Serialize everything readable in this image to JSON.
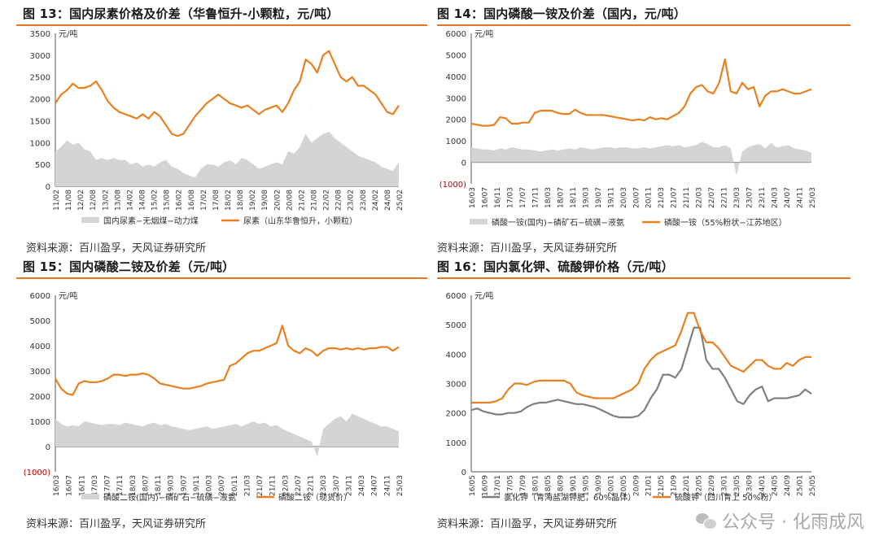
{
  "panels": [
    {
      "title": "图 13：国内尿素价格及价差（华鲁恒升-小颗粒，元/吨）",
      "source": "资料来源：百川盈孚，天风证券研究所"
    },
    {
      "title": "图 14：国内磷酸一铵及价差（国内，元/吨）",
      "source": "资料来源：百川盈孚，天风证券研究所"
    },
    {
      "title": "图 15：国内磷酸二铵及价差（元/吨）",
      "source": "资料来源：百川盈孚，天风证券研究所"
    },
    {
      "title": "图 16：国内氯化钾、硫酸钾价格（元/吨）",
      "source": "资料来源：百川盈孚，天风证券研究所"
    }
  ],
  "watermark": {
    "text": "公众号 · 化雨成风"
  },
  "colors": {
    "orange": "#e8801f",
    "gray_area": "#d4d4d4",
    "gray_line": "#7f7f7f",
    "accent_rule": "#e87722",
    "neg_label": "#c00000"
  },
  "chart_data": [
    {
      "type": "area",
      "unit": "元/吨",
      "ylim": [
        0,
        3500
      ],
      "yticks": [
        "0",
        "500",
        "1000",
        "1500",
        "2000",
        "2500",
        "3000",
        "3500"
      ],
      "x_labels": [
        "11/02",
        "11/08",
        "12/02",
        "12/08",
        "13/02",
        "13/08",
        "14/02",
        "14/08",
        "15/02",
        "15/08",
        "16/02",
        "16/08",
        "17/02",
        "17/08",
        "18/02",
        "18/08",
        "19/02",
        "19/08",
        "20/02",
        "20/08",
        "21/02",
        "21/08",
        "22/02",
        "22/08",
        "23/02",
        "23/08",
        "24/02",
        "24/08",
        "25/02"
      ],
      "series": [
        {
          "name": "国内尿素−无烟煤−动力煤",
          "kind": "area",
          "color": "#d4d4d4",
          "values": [
            800,
            900,
            1050,
            950,
            1000,
            850,
            800,
            600,
            650,
            600,
            650,
            600,
            600,
            500,
            550,
            450,
            500,
            450,
            550,
            600,
            450,
            400,
            300,
            250,
            200,
            400,
            500,
            500,
            450,
            550,
            600,
            500,
            650,
            600,
            500,
            400,
            450,
            500,
            550,
            500,
            800,
            750,
            900,
            1200,
            1000,
            1100,
            1200,
            1250,
            1100,
            1000,
            900,
            800,
            700,
            650,
            600,
            550,
            450,
            400,
            350,
            550
          ]
        },
        {
          "name": "尿素（山东华鲁恒升，小颗粒）",
          "kind": "line",
          "color": "#e8801f",
          "values": [
            1900,
            2100,
            2200,
            2350,
            2250,
            2250,
            2300,
            2400,
            2200,
            1950,
            1800,
            1700,
            1650,
            1600,
            1550,
            1650,
            1550,
            1700,
            1600,
            1400,
            1200,
            1150,
            1200,
            1400,
            1600,
            1750,
            1900,
            2000,
            2100,
            2000,
            1900,
            1850,
            1800,
            1850,
            1750,
            1650,
            1750,
            1800,
            1850,
            1700,
            1900,
            2200,
            2400,
            2900,
            2800,
            2600,
            3000,
            3100,
            2800,
            2500,
            2400,
            2500,
            2300,
            2300,
            2200,
            2100,
            1900,
            1700,
            1650,
            1850
          ]
        }
      ]
    },
    {
      "type": "area",
      "unit": "元/吨",
      "ylim": [
        -1000,
        6000
      ],
      "yticks": [
        "(1000)",
        "0",
        "1000",
        "2000",
        "3000",
        "4000",
        "5000",
        "6000"
      ],
      "x_labels": [
        "16/03",
        "16/07",
        "16/11",
        "17/03",
        "17/07",
        "17/11",
        "18/03",
        "18/07",
        "18/11",
        "19/03",
        "19/07",
        "19/11",
        "20/03",
        "20/07",
        "20/11",
        "21/03",
        "21/07",
        "21/11",
        "22/03",
        "22/07",
        "22/11",
        "23/03",
        "23/07",
        "23/11",
        "24/03",
        "24/07",
        "24/11",
        "25/03"
      ],
      "series": [
        {
          "name": "磷酸一铵(国内)−磷矿石−硫磺−液氨",
          "kind": "area",
          "color": "#d4d4d4",
          "values": [
            700,
            650,
            600,
            600,
            550,
            650,
            600,
            700,
            650,
            600,
            600,
            550,
            500,
            550,
            600,
            550,
            600,
            650,
            600,
            700,
            650,
            600,
            650,
            700,
            700,
            650,
            700,
            700,
            650,
            650,
            700,
            650,
            700,
            750,
            800,
            750,
            800,
            700,
            750,
            800,
            950,
            850,
            700,
            700,
            800,
            650,
            -600,
            500,
            700,
            800,
            850,
            650,
            900,
            700,
            750,
            800,
            650,
            600,
            550,
            450
          ]
        },
        {
          "name": "磷酸一铵（55%粉状−江苏地区）",
          "kind": "line",
          "color": "#e8801f",
          "values": [
            1800,
            1750,
            1700,
            1700,
            1750,
            2100,
            2050,
            1800,
            1800,
            1850,
            1850,
            2300,
            2400,
            2400,
            2400,
            2300,
            2250,
            2250,
            2450,
            2300,
            2200,
            2200,
            2200,
            2200,
            2150,
            2100,
            2050,
            2000,
            1950,
            2000,
            1950,
            2100,
            2000,
            2050,
            2000,
            2150,
            2300,
            2600,
            3200,
            3500,
            3600,
            3300,
            3200,
            3700,
            4800,
            3300,
            3200,
            3700,
            3400,
            3500,
            2600,
            3100,
            3300,
            3300,
            3400,
            3300,
            3200,
            3200,
            3300,
            3400
          ]
        }
      ]
    },
    {
      "type": "area",
      "unit": "元/吨",
      "ylim": [
        -1000,
        6000
      ],
      "yticks": [
        "(1000)",
        "0",
        "1000",
        "2000",
        "3000",
        "4000",
        "5000",
        "6000"
      ],
      "x_labels": [
        "16/03",
        "16/07",
        "16/11",
        "17/03",
        "17/07",
        "17/11",
        "18/03",
        "18/07",
        "18/11",
        "19/03",
        "19/07",
        "19/11",
        "20/03",
        "20/07",
        "20/11",
        "21/03",
        "21/07",
        "21/11",
        "22/03",
        "22/07",
        "22/11",
        "23/03",
        "23/07",
        "23/11",
        "24/03",
        "24/07",
        "24/11",
        "25/03"
      ],
      "series": [
        {
          "name": "磷酸二铵(国内)−磷矿石−硫磺−液氨",
          "kind": "area",
          "color": "#d4d4d4",
          "values": [
            1100,
            900,
            800,
            850,
            800,
            1000,
            950,
            900,
            850,
            900,
            900,
            850,
            950,
            900,
            850,
            800,
            900,
            950,
            850,
            900,
            800,
            750,
            700,
            650,
            700,
            750,
            800,
            700,
            750,
            800,
            850,
            900,
            800,
            900,
            1000,
            900,
            950,
            800,
            850,
            700,
            600,
            500,
            400,
            300,
            200,
            -400,
            700,
            900,
            1100,
            1200,
            1000,
            1300,
            1200,
            1100,
            1000,
            900,
            800,
            800,
            700,
            600
          ]
        },
        {
          "name": "磷酸二铵（现货价）",
          "kind": "line",
          "color": "#e8801f",
          "values": [
            2700,
            2300,
            2100,
            2050,
            2500,
            2600,
            2550,
            2550,
            2600,
            2700,
            2850,
            2850,
            2800,
            2850,
            2850,
            2900,
            2850,
            2700,
            2500,
            2450,
            2400,
            2350,
            2300,
            2300,
            2350,
            2400,
            2500,
            2550,
            2600,
            2650,
            3200,
            3300,
            3500,
            3700,
            3800,
            3800,
            3900,
            4000,
            4100,
            4800,
            4000,
            3800,
            3700,
            3900,
            3800,
            3600,
            3800,
            3900,
            3900,
            3850,
            3900,
            3850,
            3900,
            3850,
            3900,
            3900,
            3950,
            3950,
            3800,
            3950
          ]
        }
      ]
    },
    {
      "type": "line",
      "unit": "元/吨",
      "ylim": [
        0,
        6000
      ],
      "yticks": [
        "0",
        "1000",
        "2000",
        "3000",
        "4000",
        "5000",
        "6000"
      ],
      "x_labels": [
        "16/05",
        "16/09",
        "17/01",
        "17/05",
        "17/09",
        "18/01",
        "18/05",
        "18/09",
        "19/01",
        "19/05",
        "19/09",
        "20/01",
        "20/05",
        "20/09",
        "21/01",
        "21/05",
        "21/09",
        "22/01",
        "22/05",
        "22/09",
        "23/01",
        "23/05",
        "23/09",
        "24/01",
        "24/05",
        "24/09",
        "25/01",
        "25/05"
      ],
      "series": [
        {
          "name": "氯化钾（青海盐湖钾肥，60%晶体）",
          "kind": "line",
          "color": "#7f7f7f",
          "values": [
            2100,
            2150,
            2050,
            2000,
            1950,
            1950,
            2000,
            2000,
            2050,
            2200,
            2300,
            2350,
            2350,
            2400,
            2450,
            2400,
            2350,
            2300,
            2300,
            2250,
            2200,
            2100,
            2000,
            1900,
            1850,
            1850,
            1850,
            1900,
            2100,
            2500,
            2800,
            3300,
            3300,
            3200,
            3500,
            4200,
            4900,
            4900,
            3800,
            3500,
            3500,
            3200,
            2800,
            2400,
            2300,
            2600,
            2800,
            2900,
            2400,
            2500,
            2500,
            2500,
            2550,
            2600,
            2800,
            2650
          ]
        },
        {
          "name": "硫酸钾（四川青上 50%粉）",
          "kind": "line",
          "color": "#e8801f",
          "values": [
            2350,
            2350,
            2350,
            2350,
            2400,
            2500,
            2800,
            3000,
            3000,
            2950,
            3050,
            3100,
            3100,
            3100,
            3100,
            3100,
            3000,
            2700,
            2600,
            2550,
            2500,
            2500,
            2500,
            2500,
            2600,
            2700,
            2800,
            3000,
            3500,
            3800,
            4000,
            4100,
            4200,
            4300,
            4800,
            5400,
            5400,
            4800,
            4400,
            4400,
            4200,
            3900,
            3600,
            3500,
            3400,
            3600,
            3800,
            3800,
            3600,
            3500,
            3500,
            3700,
            3600,
            3800,
            3900,
            3900
          ]
        }
      ]
    }
  ]
}
